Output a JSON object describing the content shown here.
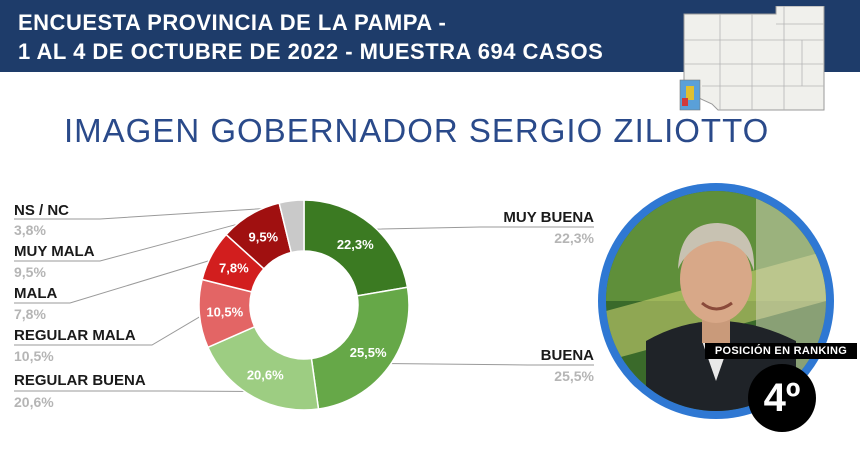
{
  "header": {
    "line1": "ENCUESTA PROVINCIA DE LA PAMPA -",
    "line2": "1 AL 4 DE OCTUBRE DE 2022 - MUESTRA 694 CASOS"
  },
  "title": "IMAGEN GOBERNADOR  SERGIO ZILIOTTO",
  "chart_data": {
    "type": "pie",
    "donut": true,
    "slices": [
      {
        "label": "MUY BUENA",
        "value": 22.3,
        "display": "22,3%",
        "color": "#3b7a22"
      },
      {
        "label": "BUENA",
        "value": 25.5,
        "display": "25,5%",
        "color": "#66a848"
      },
      {
        "label": "REGULAR BUENA",
        "value": 20.6,
        "display": "20,6%",
        "color": "#9dcd82"
      },
      {
        "label": "REGULAR MALA",
        "value": 10.5,
        "display": "10,5%",
        "color": "#e36565"
      },
      {
        "label": "MALA",
        "value": 7.8,
        "display": "7,8%",
        "color": "#d21e1e"
      },
      {
        "label": "MUY MALA",
        "value": 9.5,
        "display": "9,5%",
        "color": "#a01010"
      },
      {
        "label": "NS / NC",
        "value": 3.8,
        "display": "",
        "color": "#c9c9c9"
      }
    ]
  },
  "legend": [
    {
      "label": "NS / NC",
      "value": "3,8%"
    },
    {
      "label": "MUY MALA",
      "value": "9,5%"
    },
    {
      "label": "MALA",
      "value": "7,8%"
    },
    {
      "label": "REGULAR MALA",
      "value": "10,5%"
    },
    {
      "label": "REGULAR BUENA",
      "value": "20,6%"
    },
    {
      "label": "MUY BUENA",
      "value": "22,3%"
    },
    {
      "label": "BUENA",
      "value": "25,5%"
    }
  ],
  "ranking": {
    "label": "POSICIÓN EN RANKING",
    "position": "4º"
  }
}
